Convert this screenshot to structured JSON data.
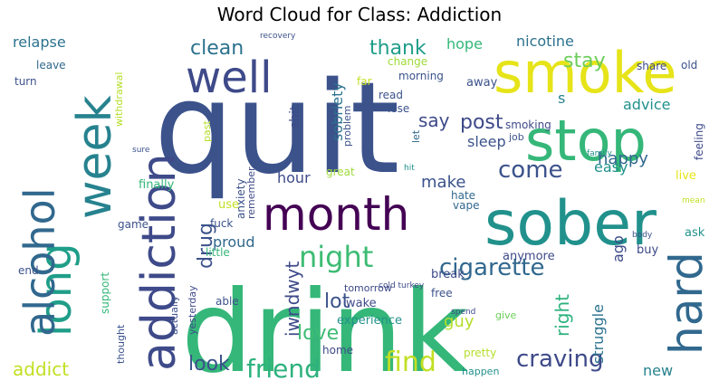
{
  "chart_data": {
    "type": "word-cloud",
    "title": "Word Cloud for Class: Addiction",
    "palette": "viridis",
    "words": [
      {
        "text": "quit",
        "weight": 100,
        "color": "#3b528b"
      },
      {
        "text": "drink",
        "weight": 96,
        "color": "#35b779"
      },
      {
        "text": "sober",
        "weight": 52,
        "color": "#21918c"
      },
      {
        "text": "smoke",
        "weight": 50,
        "color": "#e6e419"
      },
      {
        "text": "stop",
        "weight": 50,
        "color": "#35b779"
      },
      {
        "text": "month",
        "weight": 44,
        "color": "#440154"
      },
      {
        "text": "addiction",
        "weight": 40,
        "color": "#3e4a89"
      },
      {
        "text": "week",
        "weight": 40,
        "color": "#26828e"
      },
      {
        "text": "hard",
        "weight": 38,
        "color": "#31688e"
      },
      {
        "text": "well",
        "weight": 36,
        "color": "#3e4a89"
      },
      {
        "text": "long",
        "weight": 35,
        "color": "#1f9e89"
      },
      {
        "text": "alcohol",
        "weight": 34,
        "color": "#31688e"
      },
      {
        "text": "night",
        "weight": 22,
        "color": "#3dbc74"
      },
      {
        "text": "cigarette",
        "weight": 20,
        "color": "#31688e"
      },
      {
        "text": "find",
        "weight": 20,
        "color": "#c2df23"
      },
      {
        "text": "friend",
        "weight": 19,
        "color": "#2db27d"
      },
      {
        "text": "craving",
        "weight": 18,
        "color": "#3e4a89"
      },
      {
        "text": "come",
        "weight": 17,
        "color": "#3b528b"
      },
      {
        "text": "stay",
        "weight": 16,
        "color": "#6ccd5a"
      },
      {
        "text": "drug",
        "weight": 15,
        "color": "#3b528b"
      },
      {
        "text": "clean",
        "weight": 14,
        "color": "#2c728e"
      },
      {
        "text": "thank",
        "weight": 14,
        "color": "#1f9e89"
      },
      {
        "text": "post",
        "weight": 14,
        "color": "#3e4a89"
      },
      {
        "text": "say",
        "weight": 13,
        "color": "#3e4a89"
      },
      {
        "text": "lot",
        "weight": 14,
        "color": "#3b528b"
      },
      {
        "text": "love",
        "weight": 14,
        "color": "#3dbc74"
      },
      {
        "text": "look",
        "weight": 13,
        "color": "#3b528b"
      },
      {
        "text": "addict",
        "weight": 13,
        "color": "#c2df23"
      },
      {
        "text": "iwndwyt",
        "weight": 12,
        "color": "#3e4a89"
      },
      {
        "text": "right",
        "weight": 12,
        "color": "#2db27d"
      },
      {
        "text": "make",
        "weight": 11,
        "color": "#3b528b"
      },
      {
        "text": "happy",
        "weight": 11,
        "color": "#31688e"
      },
      {
        "text": "easy",
        "weight": 10,
        "color": "#21918c"
      },
      {
        "text": "sleep",
        "weight": 10,
        "color": "#3b528b"
      },
      {
        "text": "guy",
        "weight": 10,
        "color": "#b5de2b"
      },
      {
        "text": "proud",
        "weight": 10,
        "color": "#31688e"
      },
      {
        "text": "hour",
        "weight": 10,
        "color": "#3e4a89"
      },
      {
        "text": "struggle",
        "weight": 10,
        "color": "#2c728e"
      },
      {
        "text": "sobriety",
        "weight": 10,
        "color": "#2c728e"
      },
      {
        "text": "relapse",
        "weight": 10,
        "color": "#2c728e"
      },
      {
        "text": "nicotine",
        "weight": 10,
        "color": "#2c728e"
      },
      {
        "text": "advice",
        "weight": 10,
        "color": "#21918c"
      },
      {
        "text": "hope",
        "weight": 10,
        "color": "#35b779"
      },
      {
        "text": "new",
        "weight": 9,
        "color": "#26828e"
      },
      {
        "text": "ago",
        "weight": 9,
        "color": "#3e4a89"
      },
      {
        "text": "s",
        "weight": 9,
        "color": "#26828e"
      },
      {
        "text": "shit",
        "weight": 8,
        "color": "#3e4a89"
      },
      {
        "text": "experience",
        "weight": 7,
        "color": "#21918c"
      },
      {
        "text": "wake",
        "weight": 7,
        "color": "#3e4a89"
      },
      {
        "text": "break",
        "weight": 7,
        "color": "#3e4a89"
      },
      {
        "text": "tomorrow",
        "weight": 6,
        "color": "#3e4a89"
      },
      {
        "text": "free",
        "weight": 6,
        "color": "#3b528b"
      },
      {
        "text": "anymore",
        "weight": 6,
        "color": "#3e4a89"
      },
      {
        "text": "smoking",
        "weight": 6,
        "color": "#3e4a89"
      },
      {
        "text": "feeling",
        "weight": 6,
        "color": "#3e4a89"
      },
      {
        "text": "job",
        "weight": 5,
        "color": "#3b528b"
      },
      {
        "text": "vape",
        "weight": 6,
        "color": "#31688e"
      },
      {
        "text": "hate",
        "weight": 6,
        "color": "#31688e"
      },
      {
        "text": "ask",
        "weight": 6,
        "color": "#21918c"
      },
      {
        "text": "buy",
        "weight": 6,
        "color": "#3e4a89"
      },
      {
        "text": "live",
        "weight": 6,
        "color": "#e6e419"
      },
      {
        "text": "leave",
        "weight": 6,
        "color": "#31688e"
      },
      {
        "text": "turn",
        "weight": 6,
        "color": "#3b528b"
      },
      {
        "text": "withdrawal",
        "weight": 5,
        "color": "#b5de2b"
      },
      {
        "text": "away",
        "weight": 6,
        "color": "#3b528b"
      },
      {
        "text": "share",
        "weight": 6,
        "color": "#3e4a89"
      },
      {
        "text": "old",
        "weight": 6,
        "color": "#3b528b"
      },
      {
        "text": "change",
        "weight": 5,
        "color": "#9fda3a"
      },
      {
        "text": "morning",
        "weight": 5,
        "color": "#3b528b"
      },
      {
        "text": "far",
        "weight": 5,
        "color": "#c2df23"
      },
      {
        "text": "read",
        "weight": 5,
        "color": "#3b528b"
      },
      {
        "text": "lose",
        "weight": 5,
        "color": "#3b528b"
      },
      {
        "text": "problem",
        "weight": 5,
        "color": "#3b528b"
      },
      {
        "text": "let",
        "weight": 5,
        "color": "#31688e"
      },
      {
        "text": "past",
        "weight": 5,
        "color": "#b5de2b"
      },
      {
        "text": "finally",
        "weight": 6,
        "color": "#35b779"
      },
      {
        "text": "anxiety",
        "weight": 5,
        "color": "#3b528b"
      },
      {
        "text": "great",
        "weight": 5,
        "color": "#9fda3a"
      },
      {
        "text": "remember",
        "weight": 5,
        "color": "#3e4a89"
      },
      {
        "text": "use",
        "weight": 6,
        "color": "#c2df23"
      },
      {
        "text": "game",
        "weight": 5,
        "color": "#3b528b"
      },
      {
        "text": "fuck",
        "weight": 5,
        "color": "#3b528b"
      },
      {
        "text": "little",
        "weight": 5,
        "color": "#35b779"
      },
      {
        "text": "end",
        "weight": 5,
        "color": "#3b528b"
      },
      {
        "text": "support",
        "weight": 5,
        "color": "#35b779"
      },
      {
        "text": "actually",
        "weight": 5,
        "color": "#3b528b"
      },
      {
        "text": "yesterday",
        "weight": 5,
        "color": "#3e4a89"
      },
      {
        "text": "thought",
        "weight": 5,
        "color": "#3b528b"
      },
      {
        "text": "able",
        "weight": 5,
        "color": "#3b528b"
      },
      {
        "text": "home",
        "weight": 5,
        "color": "#3e4a89"
      },
      {
        "text": "pretty",
        "weight": 5,
        "color": "#b5de2b"
      },
      {
        "text": "happen",
        "weight": 4,
        "color": "#21918c"
      },
      {
        "text": "give",
        "weight": 4,
        "color": "#6ccd5a"
      },
      {
        "text": "spend",
        "weight": 4,
        "color": "#3e4a89"
      },
      {
        "text": "cold turkey",
        "weight": 4,
        "color": "#3e4a89"
      },
      {
        "text": "body",
        "weight": 4,
        "color": "#3b528b"
      },
      {
        "text": "mean",
        "weight": 4,
        "color": "#c2df23"
      },
      {
        "text": "family",
        "weight": 4,
        "color": "#21918c"
      },
      {
        "text": "sure",
        "weight": 4,
        "color": "#3b528b"
      },
      {
        "text": "hit",
        "weight": 4,
        "color": "#21918c"
      },
      {
        "text": "recovery",
        "weight": 4,
        "color": "#3b528b"
      }
    ]
  }
}
